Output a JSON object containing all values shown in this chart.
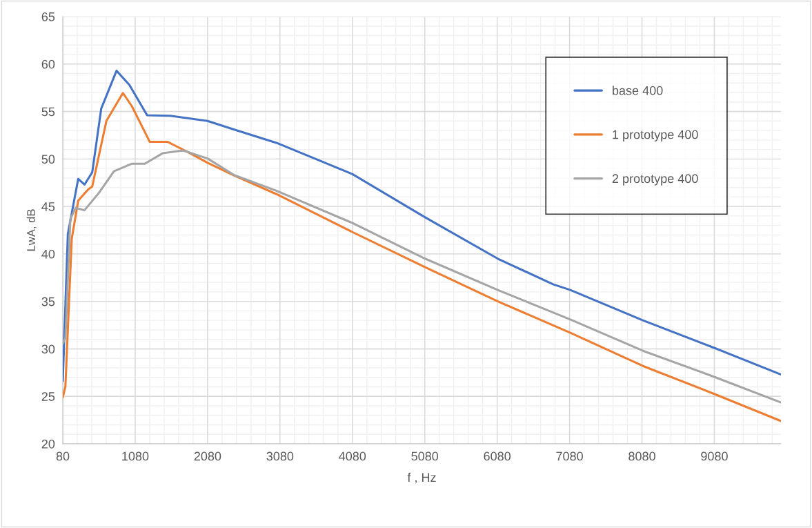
{
  "chart_data": {
    "type": "line",
    "xlabel": "f , Hz",
    "ylabel": "LwA, dB",
    "xlim": [
      80,
      10000
    ],
    "ylim": [
      20,
      65
    ],
    "xticks": [
      80,
      1080,
      2080,
      3080,
      4080,
      5080,
      6080,
      7080,
      8080,
      9080
    ],
    "yticks": [
      20,
      25,
      30,
      35,
      40,
      45,
      50,
      55,
      60,
      65
    ],
    "grid": true,
    "legend": "top right",
    "marker": "none",
    "line_style": "solid",
    "series": [
      {
        "name": "base 400",
        "color": "#4472c4",
        "x": [
          80,
          150,
          293,
          380,
          487,
          611,
          823,
          1000,
          1245,
          1565,
          2080,
          2449,
          3031,
          3222,
          4082,
          5085,
          6088,
          6852,
          7090,
          8093,
          9096,
          10000
        ],
        "values": [
          26.6,
          42.1,
          47.9,
          47.3,
          48.6,
          55.3,
          59.3,
          57.8,
          54.6,
          54.55,
          54.0,
          53.1,
          51.7,
          51.1,
          48.4,
          43.85,
          39.5,
          36.8,
          36.2,
          33.0,
          30.05,
          27.3
        ]
      },
      {
        "name": "1 prototype 400",
        "color": "#ed7d31",
        "x": [
          80,
          116,
          204,
          293,
          433,
          487,
          682,
          911,
          1035,
          1282,
          1530,
          1813,
          2080,
          2449,
          3031,
          4082,
          5085,
          6088,
          7090,
          8093,
          9096,
          10000
        ],
        "values": [
          24.9,
          26.0,
          41.6,
          45.6,
          46.8,
          47.1,
          54.0,
          56.95,
          55.55,
          51.8,
          51.8,
          50.7,
          49.6,
          48.25,
          46.3,
          42.3,
          38.6,
          35.0,
          31.7,
          28.2,
          25.2,
          22.4
        ]
      },
      {
        "name": "2 prototype 400",
        "color": "#a5a5a5",
        "x": [
          80,
          116,
          185,
          258,
          380,
          576,
          787,
          1035,
          1212,
          1459,
          1742,
          2080,
          2449,
          3031,
          4082,
          5085,
          6088,
          7090,
          8093,
          9096,
          10000
        ],
        "values": [
          30.55,
          31.1,
          43.7,
          44.85,
          44.6,
          46.4,
          48.7,
          49.5,
          49.5,
          50.6,
          50.9,
          50.05,
          48.3,
          46.65,
          43.25,
          39.5,
          36.2,
          33.1,
          29.8,
          27.0,
          24.35
        ]
      }
    ]
  }
}
